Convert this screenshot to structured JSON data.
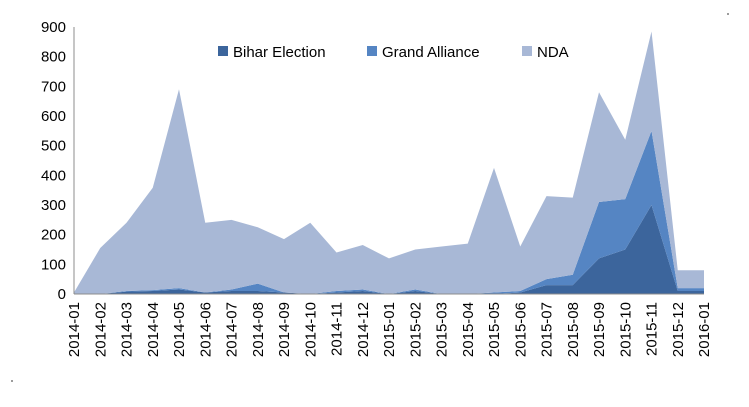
{
  "chart_data": {
    "type": "area",
    "stacked": true,
    "categories": [
      "2014-01",
      "2014-02",
      "2014-03",
      "2014-04",
      "2014-05",
      "2014-06",
      "2014-07",
      "2014-08",
      "2014-09",
      "2014-10",
      "2014-11",
      "2014-12",
      "2015-01",
      "2015-02",
      "2015-03",
      "2015-04",
      "2015-05",
      "2015-06",
      "2015-07",
      "2015-08",
      "2015-09",
      "2015-10",
      "2015-11",
      "2015-12",
      "2016-01"
    ],
    "series": [
      {
        "name": "Bihar Election",
        "color": "#3c659c",
        "values": [
          0,
          0,
          8,
          10,
          15,
          5,
          10,
          10,
          5,
          0,
          5,
          10,
          0,
          10,
          0,
          0,
          0,
          5,
          30,
          30,
          120,
          150,
          300,
          10,
          10
        ]
      },
      {
        "name": "Grand Alliance",
        "color": "#5585c3",
        "values": [
          0,
          0,
          2,
          3,
          5,
          0,
          5,
          25,
          0,
          0,
          5,
          5,
          0,
          5,
          0,
          0,
          5,
          5,
          20,
          35,
          190,
          170,
          250,
          10,
          10
        ]
      },
      {
        "name": "NDA",
        "color": "#a8b8d6",
        "values": [
          5,
          155,
          230,
          345,
          670,
          235,
          235,
          190,
          180,
          240,
          130,
          150,
          120,
          135,
          160,
          170,
          420,
          150,
          280,
          260,
          370,
          200,
          335,
          60,
          60
        ]
      }
    ],
    "yticks": [
      "0",
      "100",
      "200",
      "300",
      "400",
      "500",
      "600",
      "700",
      "800",
      "900"
    ],
    "ylim": [
      0,
      900
    ],
    "grid": false,
    "legend_position": "top-center",
    "title": "",
    "xlabel": "",
    "ylabel": ""
  }
}
